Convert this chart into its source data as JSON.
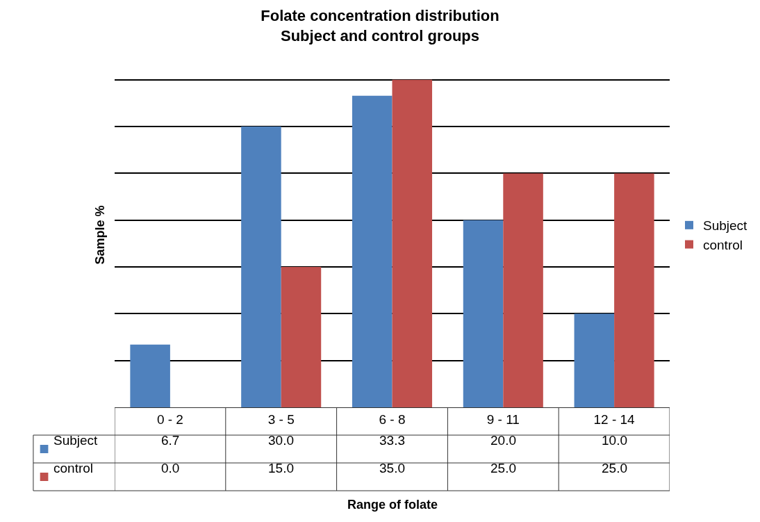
{
  "chart_data": {
    "type": "bar",
    "title": "Folate concentration distribution\nSubject and control groups",
    "annotations": [
      "Range of folate"
    ],
    "ylabel": "Sample %",
    "categories": [
      "0 - 2",
      "3 - 5",
      "6 - 8",
      "9 - 11",
      "12 - 14"
    ],
    "series": [
      {
        "name": "Subject",
        "color": "#4f81bd",
        "values": [
          6.7,
          30,
          33.3,
          20,
          10
        ],
        "value_labels": [
          "6.7",
          "30.0",
          "33.3",
          "20.0",
          "10.0"
        ]
      },
      {
        "name": "control",
        "color": "#c0504d",
        "values": [
          0,
          15,
          35,
          25,
          25
        ],
        "value_labels": [
          "0.0",
          "15.0",
          "35.0",
          "25.0",
          "25.0"
        ]
      }
    ],
    "grid": "y",
    "legend": "right",
    "tick_labels": "x"
  }
}
